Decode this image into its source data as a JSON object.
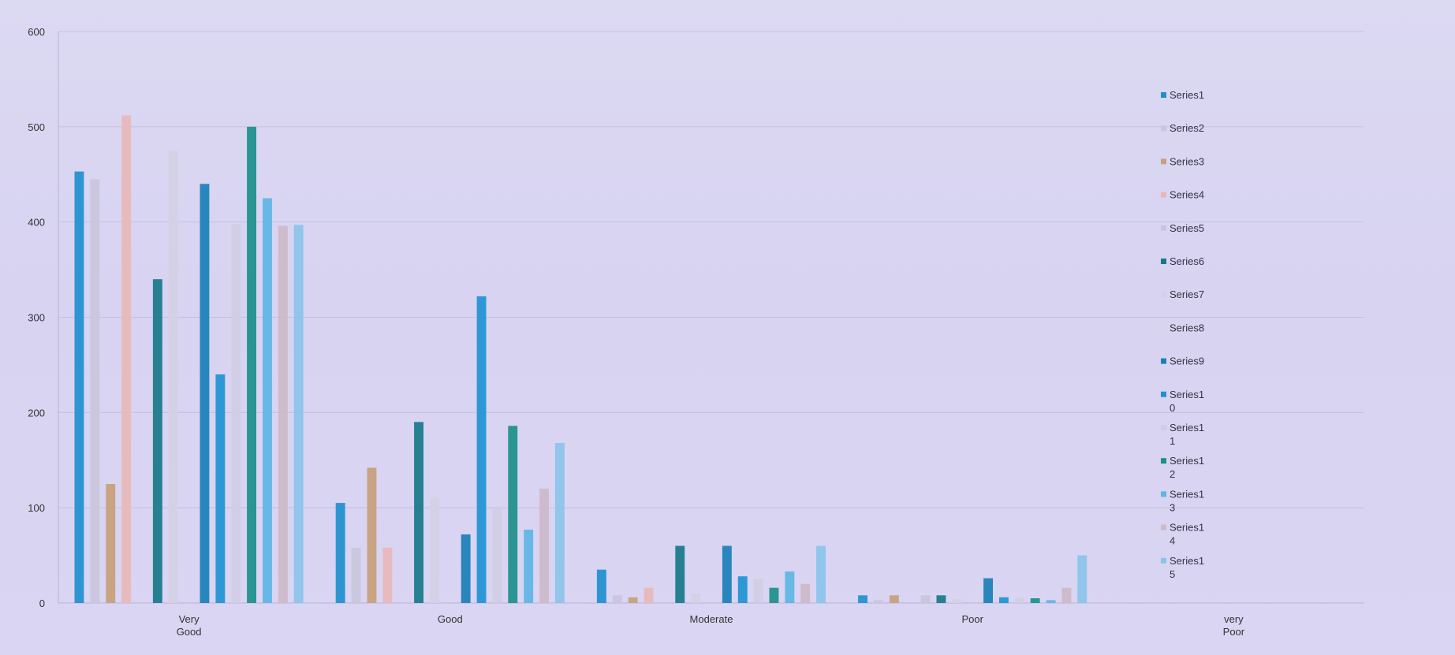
{
  "chart_data": {
    "type": "bar",
    "title": "",
    "xlabel": "",
    "ylabel": "",
    "ylim": [
      0,
      600
    ],
    "yticks": [
      "0",
      "100",
      "200",
      "300",
      "400",
      "500",
      "600"
    ],
    "categories": [
      [
        "Very",
        "Good"
      ],
      [
        "Good"
      ],
      [
        "Moderate"
      ],
      [
        "Poor"
      ],
      [
        "very",
        "Poor"
      ]
    ],
    "grid": true,
    "legend_position": "right",
    "series": [
      {
        "name": "Series1",
        "color": "#1f8fd0",
        "values": [
          453,
          105,
          35,
          8,
          0
        ]
      },
      {
        "name": "Series2",
        "color": "#c9c6dc",
        "values": [
          445,
          58,
          8,
          3,
          0
        ]
      },
      {
        "name": "Series3",
        "color": "#c8a07a",
        "values": [
          125,
          142,
          6,
          8,
          0
        ]
      },
      {
        "name": "Series4",
        "color": "#e8b8b8",
        "values": [
          512,
          58,
          16,
          0,
          0
        ]
      },
      {
        "name": "Series5",
        "color": "#c8c4dc",
        "values": [
          0,
          0,
          0,
          8,
          0
        ]
      },
      {
        "name": "Series6",
        "color": "#17788a",
        "values": [
          340,
          190,
          60,
          8,
          0
        ]
      },
      {
        "name": "Series7",
        "color": "#d4d0e6",
        "values": [
          475,
          110,
          10,
          4,
          0
        ]
      },
      {
        "name": "Series8",
        "color": "#d9d5ea",
        "values": [
          0,
          0,
          0,
          0,
          0
        ]
      },
      {
        "name": "Series9",
        "color": "#1a7fb8",
        "values": [
          440,
          72,
          60,
          26,
          0
        ]
      },
      {
        "name": "Series10",
        "color": "#1f92d4",
        "values": [
          240,
          322,
          28,
          6,
          0
        ]
      },
      {
        "name": "Series11",
        "color": "#d1cde4",
        "values": [
          398,
          100,
          25,
          5,
          0
        ]
      },
      {
        "name": "Series12",
        "color": "#1b8f8a",
        "values": [
          500,
          186,
          16,
          5,
          0
        ]
      },
      {
        "name": "Series13",
        "color": "#5db5e6",
        "values": [
          425,
          77,
          33,
          3,
          0
        ]
      },
      {
        "name": "Series14",
        "color": "#cdb9c8",
        "values": [
          396,
          120,
          20,
          16,
          0
        ]
      },
      {
        "name": "Series15",
        "color": "#8bc3ea",
        "values": [
          397,
          168,
          60,
          50,
          0
        ]
      }
    ],
    "legend_labels": [
      [
        "Series1"
      ],
      [
        "Series2"
      ],
      [
        "Series3"
      ],
      [
        "Series4"
      ],
      [
        "Series5"
      ],
      [
        "Series6"
      ],
      [
        "Series7"
      ],
      [
        "Series8"
      ],
      [
        "Series9"
      ],
      [
        "Series1",
        "0"
      ],
      [
        "Series1",
        "1"
      ],
      [
        "Series1",
        "2"
      ],
      [
        "Series1",
        "3"
      ],
      [
        "Series1",
        "4"
      ],
      [
        "Series1",
        "5"
      ]
    ]
  }
}
